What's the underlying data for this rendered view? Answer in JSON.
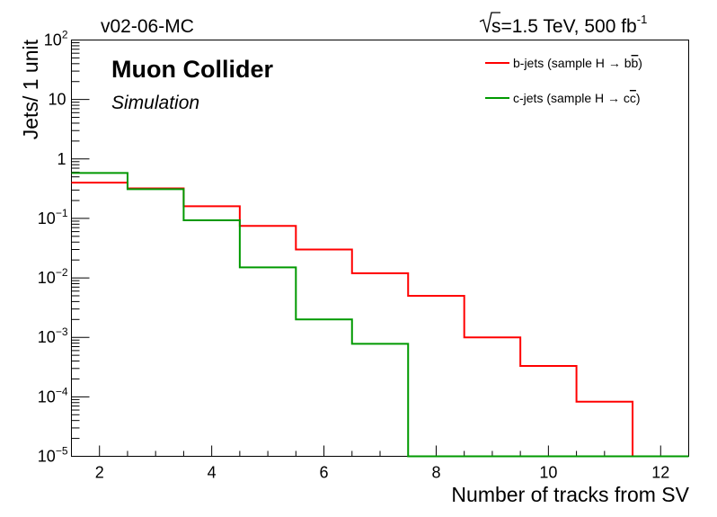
{
  "header": {
    "version": "v02-06-MC",
    "energy_sqrt": "s",
    "energy_text": "=1.5 TeV, 500 fb",
    "energy_exp": "-1"
  },
  "labels": {
    "experiment": "Muon Collider",
    "status": "Simulation"
  },
  "legend_text": {
    "b_prefix": "b-jets (sample H ",
    "b_arrow": "→",
    "b_mid": " b",
    "b_bar": "b",
    "b_suffix": ")",
    "c_prefix": "c-jets (sample H ",
    "c_arrow": "→",
    "c_mid": " c",
    "c_bar": "c",
    "c_suffix": ")"
  },
  "chart_data": {
    "type": "line",
    "histogram": true,
    "xlabel": "Number of tracks from SV",
    "ylabel": "Jets/ 1 unit",
    "xlim": [
      1.5,
      12.5
    ],
    "ylim": [
      1e-05,
      100
    ],
    "yscale": "log",
    "x_ticks": [
      2,
      4,
      6,
      8,
      10,
      12
    ],
    "y_ticks": [
      {
        "base": "10",
        "exp": "−5",
        "value": 1e-05
      },
      {
        "base": "10",
        "exp": "−4",
        "value": 0.0001
      },
      {
        "base": "10",
        "exp": "−3",
        "value": 0.001
      },
      {
        "base": "10",
        "exp": "−2",
        "value": 0.01
      },
      {
        "base": "10",
        "exp": "−1",
        "value": 0.1
      },
      {
        "base": "1",
        "exp": "",
        "value": 1
      },
      {
        "base": "10",
        "exp": "",
        "value": 10
      },
      {
        "base": "10",
        "exp": "2",
        "value": 100
      }
    ],
    "legend_position": "top-right",
    "grid": false,
    "series": [
      {
        "name": "b-jets (sample H → bb̄)",
        "color": "#ff0000",
        "bins": [
          {
            "lo": 1.5,
            "hi": 2.5,
            "value": 0.4
          },
          {
            "lo": 2.5,
            "hi": 3.5,
            "value": 0.32
          },
          {
            "lo": 3.5,
            "hi": 4.5,
            "value": 0.16
          },
          {
            "lo": 4.5,
            "hi": 5.5,
            "value": 0.075
          },
          {
            "lo": 5.5,
            "hi": 6.5,
            "value": 0.03
          },
          {
            "lo": 6.5,
            "hi": 7.5,
            "value": 0.012
          },
          {
            "lo": 7.5,
            "hi": 8.5,
            "value": 0.005
          },
          {
            "lo": 8.5,
            "hi": 9.5,
            "value": 0.001
          },
          {
            "lo": 9.5,
            "hi": 10.5,
            "value": 0.00033
          },
          {
            "lo": 10.5,
            "hi": 11.5,
            "value": 8.3e-05
          },
          {
            "lo": 11.5,
            "hi": 12.5,
            "value": 0
          }
        ]
      },
      {
        "name": "c-jets (sample H → cc̄)",
        "color": "#009900",
        "bins": [
          {
            "lo": 1.5,
            "hi": 2.5,
            "value": 0.58
          },
          {
            "lo": 2.5,
            "hi": 3.5,
            "value": 0.31
          },
          {
            "lo": 3.5,
            "hi": 4.5,
            "value": 0.093
          },
          {
            "lo": 4.5,
            "hi": 5.5,
            "value": 0.015
          },
          {
            "lo": 5.5,
            "hi": 6.5,
            "value": 0.002
          },
          {
            "lo": 6.5,
            "hi": 7.5,
            "value": 0.00078
          },
          {
            "lo": 7.5,
            "hi": 8.5,
            "value": 0
          },
          {
            "lo": 8.5,
            "hi": 9.5,
            "value": 0
          },
          {
            "lo": 9.5,
            "hi": 10.5,
            "value": 0
          },
          {
            "lo": 10.5,
            "hi": 11.5,
            "value": 0
          },
          {
            "lo": 11.5,
            "hi": 12.5,
            "value": 0
          }
        ]
      }
    ]
  }
}
